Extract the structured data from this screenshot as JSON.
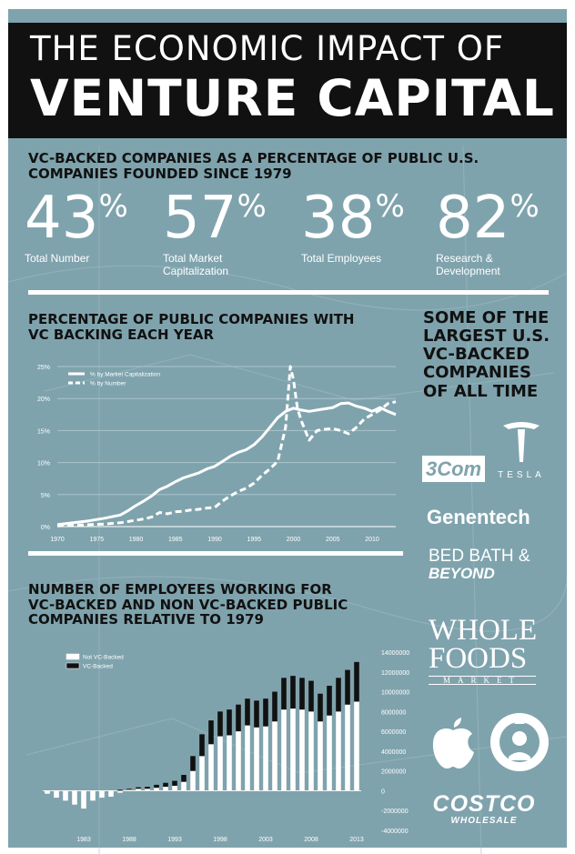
{
  "title": {
    "line1": "THE ECONOMIC IMPACT OF",
    "line2": "VENTURE CAPITAL"
  },
  "section1": {
    "title": "VC-BACKED COMPANIES AS A PERCENTAGE OF PUBLIC U.S.\nCOMPANIES FOUNDED SINCE 1979",
    "stats": [
      {
        "value": "43",
        "unit": "%",
        "label": "Total Number"
      },
      {
        "value": "57",
        "unit": "%",
        "label": "Total Market\nCapitalization"
      },
      {
        "value": "38",
        "unit": "%",
        "label": "Total Employees"
      },
      {
        "value": "82",
        "unit": "%",
        "label": "Research &\nDevelopment"
      }
    ]
  },
  "sidebar": {
    "title": "SOME OF THE\nLARGEST U.S.\nVC-BACKED\nCOMPANIES\nOF ALL TIME",
    "logos": {
      "threecom": "3Com",
      "tesla": "TESLA",
      "genentech": "Genentech",
      "bbb_line1": "BED BATH &",
      "bbb_line2": "BEYOND",
      "wf_line1": "WHOLE",
      "wf_line2": "FOODS",
      "wf_line3": "MARKET",
      "apple": "apple-logo",
      "starbucks": "starbucks-logo",
      "costco_line1": "COSTCO",
      "costco_line2": "WHOLESALE"
    }
  },
  "colors": {
    "background": "#7fa3ad",
    "banner": "#111111",
    "white": "#ffffff",
    "dark": "#111111"
  },
  "chart_data": [
    {
      "type": "line",
      "title": "PERCENTAGE OF PUBLIC COMPANIES WITH\nVC BACKING EACH YEAR",
      "xlabel": "",
      "ylabel": "",
      "xlim": [
        1970,
        2013
      ],
      "ylim": [
        0,
        25
      ],
      "grid": true,
      "legend": "top-left",
      "x_ticks": [
        "1970",
        "1975",
        "1980",
        "1985",
        "1990",
        "1995",
        "2000",
        "2005",
        "2010"
      ],
      "y_ticks": [
        "0%",
        "5%",
        "10%",
        "15%",
        "20%",
        "25%"
      ],
      "series": [
        {
          "name": "% by Market Capitalization",
          "style": "solid",
          "points": [
            [
              1970,
              0.3
            ],
            [
              1972,
              0.6
            ],
            [
              1974,
              0.9
            ],
            [
              1976,
              1.3
            ],
            [
              1978,
              1.8
            ],
            [
              1979,
              2.5
            ],
            [
              1980,
              3.3
            ],
            [
              1981,
              4.0
            ],
            [
              1982,
              4.8
            ],
            [
              1983,
              5.8
            ],
            [
              1984,
              6.3
            ],
            [
              1985,
              7.0
            ],
            [
              1986,
              7.6
            ],
            [
              1987,
              8.0
            ],
            [
              1988,
              8.4
            ],
            [
              1989,
              9.0
            ],
            [
              1990,
              9.4
            ],
            [
              1991,
              10.2
            ],
            [
              1992,
              11.0
            ],
            [
              1993,
              11.6
            ],
            [
              1994,
              12.0
            ],
            [
              1995,
              12.8
            ],
            [
              1996,
              14.0
            ],
            [
              1997,
              15.5
            ],
            [
              1998,
              17.0
            ],
            [
              1999,
              18.0
            ],
            [
              2000,
              18.5
            ],
            [
              2001,
              18.2
            ],
            [
              2002,
              18.0
            ],
            [
              2003,
              18.2
            ],
            [
              2004,
              18.4
            ],
            [
              2005,
              18.6
            ],
            [
              2006,
              19.2
            ],
            [
              2007,
              19.3
            ],
            [
              2008,
              18.8
            ],
            [
              2009,
              18.5
            ],
            [
              2010,
              18.0
            ],
            [
              2011,
              18.6
            ],
            [
              2012,
              18.0
            ],
            [
              2013,
              17.5
            ]
          ]
        },
        {
          "name": "% by Number",
          "style": "dashed",
          "points": [
            [
              1970,
              0.1
            ],
            [
              1972,
              0.2
            ],
            [
              1974,
              0.3
            ],
            [
              1976,
              0.4
            ],
            [
              1978,
              0.6
            ],
            [
              1979,
              0.8
            ],
            [
              1980,
              1.0
            ],
            [
              1981,
              1.2
            ],
            [
              1982,
              1.5
            ],
            [
              1983,
              2.2
            ],
            [
              1984,
              2.0
            ],
            [
              1985,
              2.3
            ],
            [
              1986,
              2.4
            ],
            [
              1987,
              2.6
            ],
            [
              1988,
              2.7
            ],
            [
              1989,
              2.9
            ],
            [
              1990,
              3.0
            ],
            [
              1991,
              4.0
            ],
            [
              1992,
              4.8
            ],
            [
              1993,
              5.5
            ],
            [
              1994,
              6.0
            ],
            [
              1995,
              6.8
            ],
            [
              1996,
              8.0
            ],
            [
              1997,
              9.0
            ],
            [
              1998,
              10.2
            ],
            [
              1999,
              15.5
            ],
            [
              1999.6,
              25.0
            ],
            [
              2000,
              23.0
            ],
            [
              2000.5,
              18.5
            ],
            [
              2001,
              16.5
            ],
            [
              2002,
              13.5
            ],
            [
              2003,
              15.0
            ],
            [
              2004,
              15.2
            ],
            [
              2005,
              15.3
            ],
            [
              2006,
              15.0
            ],
            [
              2007,
              14.5
            ],
            [
              2008,
              15.5
            ],
            [
              2009,
              16.8
            ],
            [
              2010,
              17.5
            ],
            [
              2011,
              18.2
            ],
            [
              2012,
              19.2
            ],
            [
              2013,
              19.5
            ]
          ]
        }
      ]
    },
    {
      "type": "bar",
      "title": "NUMBER OF EMPLOYEES WORKING FOR\nVC-BACKED AND NON VC-BACKED PUBLIC\nCOMPANIES RELATIVE TO 1979",
      "xlabel": "",
      "ylabel": "",
      "stacked": true,
      "legend": "top-left",
      "ylim": [
        -4000000,
        14000000
      ],
      "y_axis_position": "right",
      "y_ticks": [
        "14000000",
        "12000000",
        "10000000",
        "8000000",
        "6000000",
        "4000000",
        "2000000",
        "0",
        "-2000000",
        "-4000000"
      ],
      "x_tick_labels": [
        "1983",
        "1988",
        "1993",
        "1998",
        "2003",
        "2008",
        "2013"
      ],
      "categories": [
        "1979",
        "1980",
        "1981",
        "1982",
        "1983",
        "1984",
        "1985",
        "1986",
        "1987",
        "1988",
        "1989",
        "1990",
        "1991",
        "1992",
        "1993",
        "1994",
        "1995",
        "1996",
        "1997",
        "1998",
        "1999",
        "2000",
        "2001",
        "2002",
        "2003",
        "2004",
        "2005",
        "2006",
        "2007",
        "2008",
        "2009",
        "2010",
        "2011",
        "2012",
        "2013"
      ],
      "series": [
        {
          "name": "Not VC-Backed",
          "values": [
            -300000,
            -700000,
            -1000000,
            -1400000,
            -1800000,
            -1000000,
            -700000,
            -600000,
            -200000,
            100000,
            200000,
            200000,
            300000,
            400000,
            500000,
            900000,
            2000000,
            3500000,
            4700000,
            5500000,
            5600000,
            6000000,
            6600000,
            6400000,
            6500000,
            7000000,
            8200000,
            8300000,
            8200000,
            8000000,
            7000000,
            7600000,
            8000000,
            8700000,
            9000000
          ]
        },
        {
          "name": "VC-Backed",
          "values": [
            0,
            0,
            0,
            0,
            0,
            0,
            0,
            0,
            100000,
            100000,
            150000,
            200000,
            300000,
            400000,
            500000,
            700000,
            1500000,
            2200000,
            2400000,
            2500000,
            2600000,
            2700000,
            2700000,
            2700000,
            2800000,
            3000000,
            3200000,
            3300000,
            3200000,
            3100000,
            2800000,
            3000000,
            3400000,
            3500000,
            4000000
          ]
        }
      ]
    }
  ]
}
